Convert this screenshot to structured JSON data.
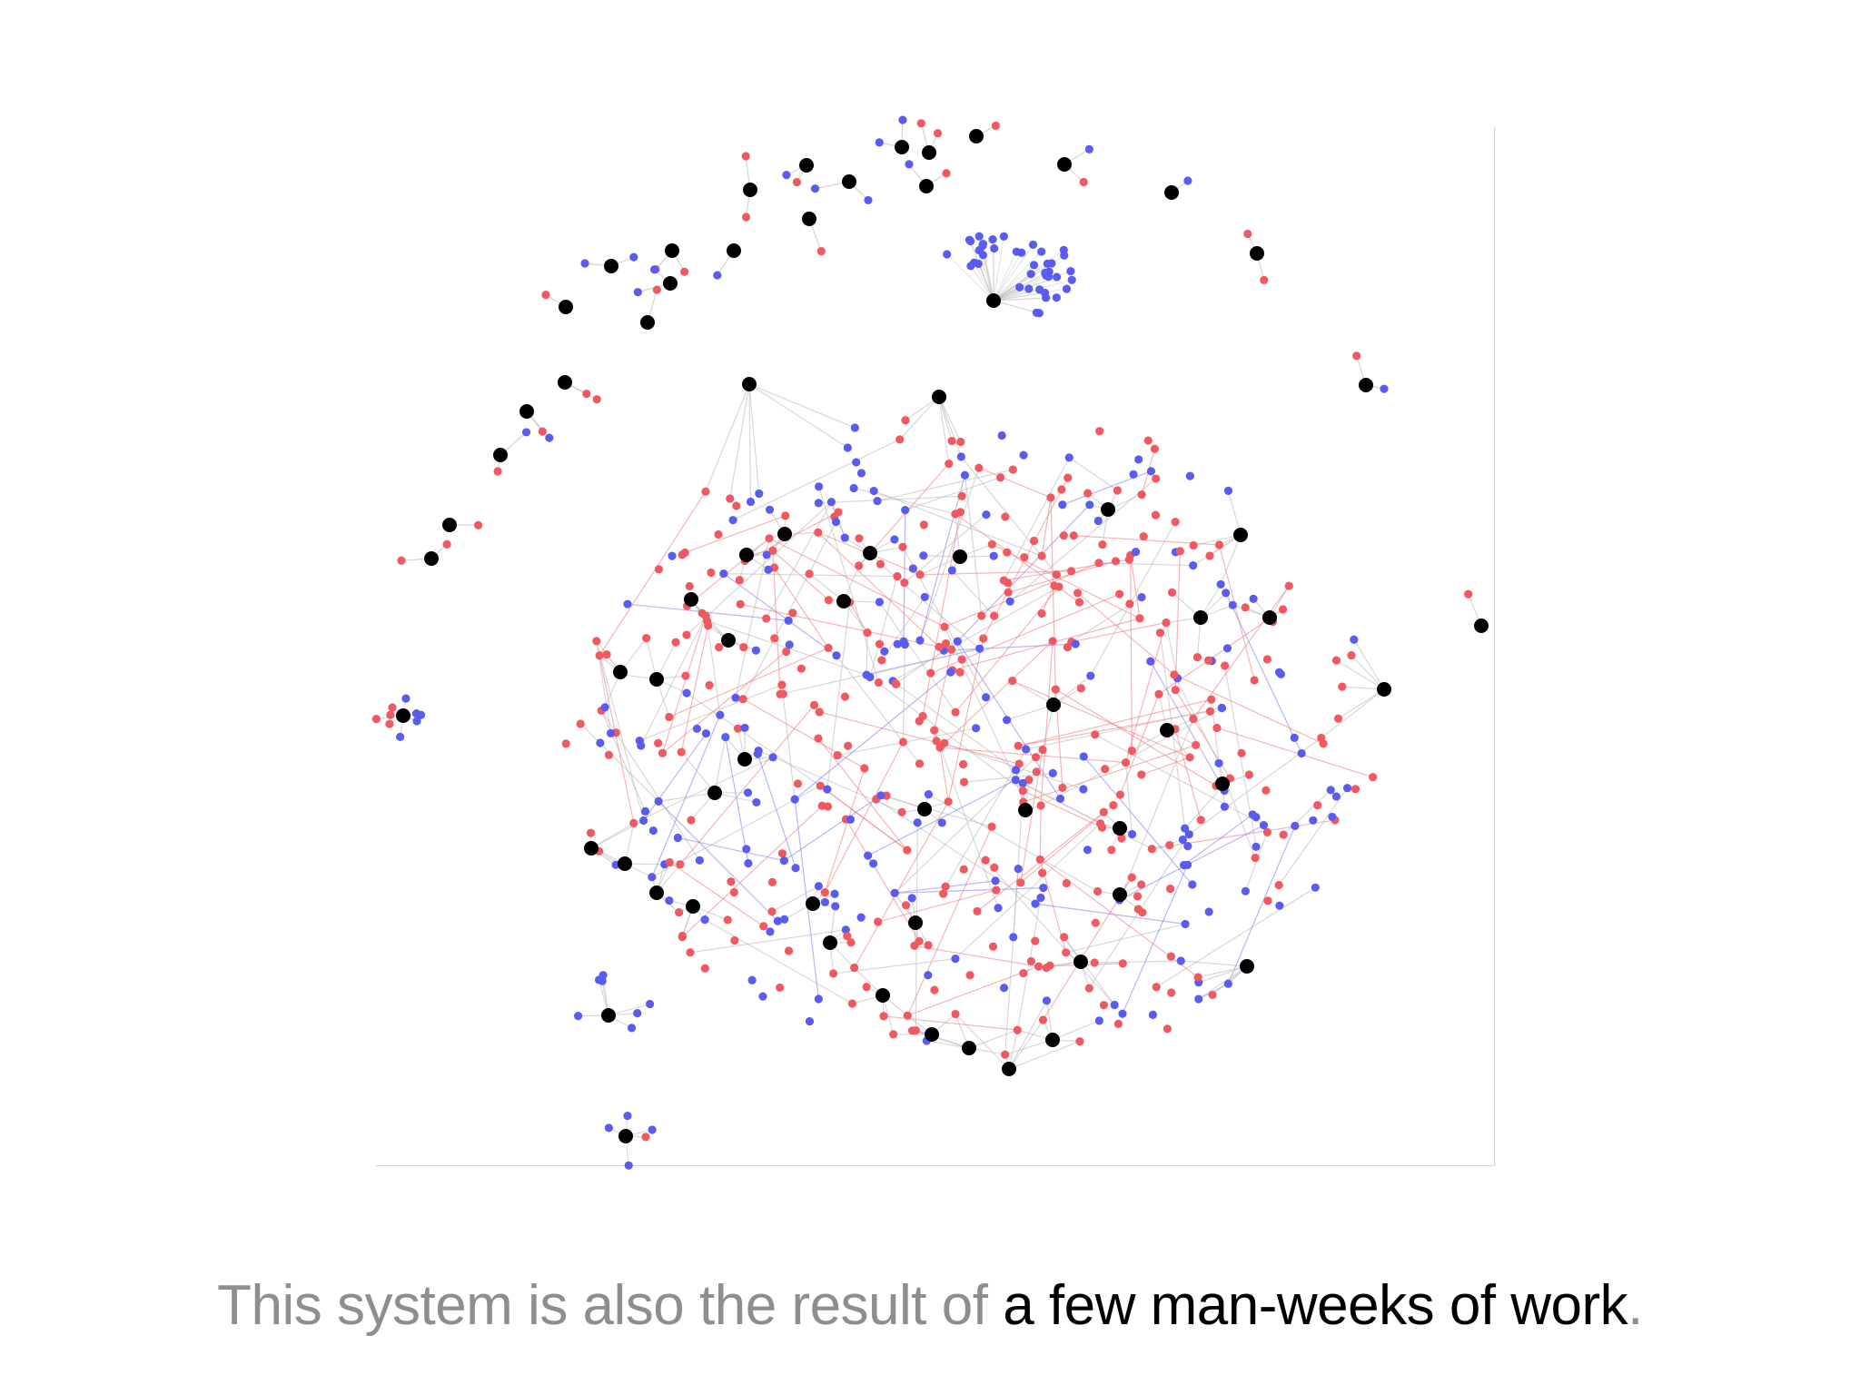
{
  "caption": {
    "lead": "This system is also the result of ",
    "highlight": "a few man-weeks of work",
    "tail": "."
  },
  "colors": {
    "hub": "#000000",
    "node_red": "#f0595f",
    "node_blue": "#5a5cf0",
    "edge_red": "#f2797c",
    "edge_blue": "#7a7cf0",
    "edge_gray": "#b8b8b8",
    "caption_muted": "#8e8e8e",
    "caption_strong": "#000000"
  },
  "graph": {
    "legend": "none",
    "node_types": [
      "hub",
      "red",
      "blue"
    ]
  }
}
